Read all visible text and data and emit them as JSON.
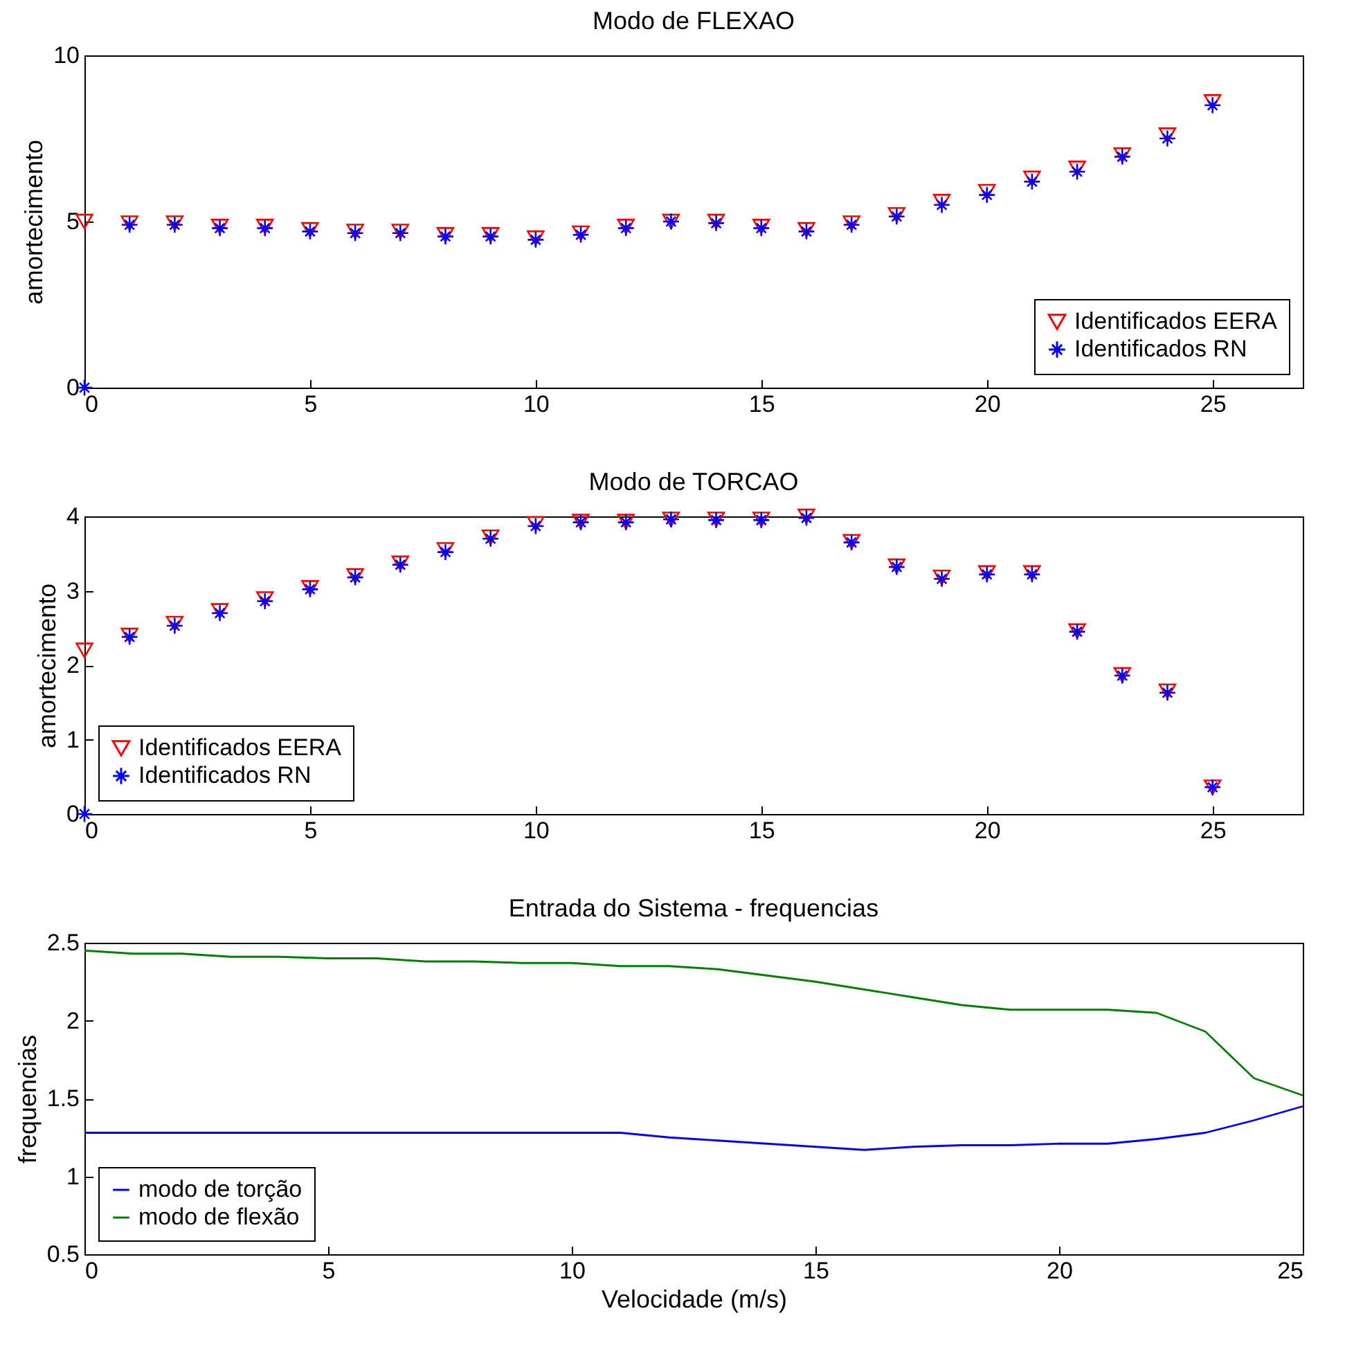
{
  "chart_data": [
    {
      "type": "scatter",
      "title": "Modo de FLEXAO",
      "ylabel": "amortecimento",
      "x": [
        0,
        1,
        2,
        3,
        4,
        5,
        6,
        7,
        8,
        9,
        10,
        11,
        12,
        13,
        14,
        15,
        16,
        17,
        18,
        19,
        20,
        21,
        22,
        23,
        24,
        25
      ],
      "xlim": [
        0,
        27
      ],
      "xticks": [
        0,
        5,
        10,
        15,
        20,
        25
      ],
      "ylim": [
        0,
        10
      ],
      "yticks": [
        0,
        5,
        10
      ],
      "grid": false,
      "legend": "bottom right",
      "series": [
        {
          "name": "Identificados EERA",
          "color": "#ff0000",
          "marker": "triangle",
          "values": [
            5.0,
            4.95,
            4.95,
            4.85,
            4.85,
            4.75,
            4.7,
            4.7,
            4.6,
            4.6,
            4.5,
            4.65,
            4.85,
            5.0,
            5.0,
            4.85,
            4.75,
            4.95,
            5.2,
            5.6,
            5.9,
            6.3,
            6.6,
            7.0,
            7.6,
            8.6
          ]
        },
        {
          "name": "Identificados RN",
          "color": "#0000ff",
          "marker": "cross",
          "values": [
            0,
            4.9,
            4.9,
            4.8,
            4.8,
            4.7,
            4.65,
            4.65,
            4.55,
            4.55,
            4.45,
            4.6,
            4.8,
            5.0,
            4.95,
            4.8,
            4.7,
            4.9,
            5.15,
            5.5,
            5.8,
            6.2,
            6.5,
            6.95,
            7.5,
            8.5
          ]
        }
      ]
    },
    {
      "type": "scatter",
      "title": "Modo de TORCAO",
      "ylabel": "amortecimento",
      "x": [
        0,
        1,
        2,
        3,
        4,
        5,
        6,
        7,
        8,
        9,
        10,
        11,
        12,
        13,
        14,
        15,
        16,
        17,
        18,
        19,
        20,
        21,
        22,
        23,
        24,
        25
      ],
      "xlim": [
        0,
        27
      ],
      "xticks": [
        0,
        5,
        10,
        15,
        20,
        25
      ],
      "ylim": [
        0,
        4
      ],
      "yticks": [
        0,
        1,
        2,
        3,
        4
      ],
      "grid": false,
      "legend": "bottom left",
      "series": [
        {
          "name": "Identificados EERA",
          "color": "#ff0000",
          "marker": "triangle",
          "values": [
            2.2,
            2.4,
            2.56,
            2.73,
            2.89,
            3.04,
            3.2,
            3.37,
            3.55,
            3.72,
            3.9,
            3.93,
            3.93,
            3.96,
            3.96,
            3.96,
            4.0,
            3.66,
            3.33,
            3.18,
            3.24,
            3.24,
            2.46,
            1.87,
            1.65,
            0.36
          ]
        },
        {
          "name": "Identificados RN",
          "color": "#0000ff",
          "marker": "cross",
          "values": [
            0,
            2.38,
            2.53,
            2.7,
            2.86,
            3.02,
            3.18,
            3.35,
            3.52,
            3.7,
            3.87,
            3.92,
            3.92,
            3.96,
            3.95,
            3.95,
            3.98,
            3.65,
            3.32,
            3.16,
            3.22,
            3.22,
            2.45,
            1.86,
            1.63,
            0.36
          ]
        }
      ]
    },
    {
      "type": "line",
      "title": "Entrada do Sistema - frequencias",
      "xlabel": "Velocidade (m/s)",
      "ylabel": "frequencias",
      "x": [
        0,
        1,
        2,
        3,
        4,
        5,
        6,
        7,
        8,
        9,
        10,
        11,
        12,
        13,
        14,
        15,
        16,
        17,
        18,
        19,
        20,
        21,
        22,
        23,
        24,
        25
      ],
      "xlim": [
        0,
        25
      ],
      "xticks": [
        0,
        5,
        10,
        15,
        20,
        25
      ],
      "ylim": [
        0.5,
        2.5
      ],
      "yticks": [
        0.5,
        1,
        1.5,
        2,
        2.5
      ],
      "grid": false,
      "legend": "bottom left",
      "line_style": "solid",
      "series": [
        {
          "name": "modo de torção",
          "color": "#0000ff",
          "values": [
            1.28,
            1.28,
            1.28,
            1.28,
            1.28,
            1.28,
            1.28,
            1.28,
            1.28,
            1.28,
            1.28,
            1.28,
            1.25,
            1.23,
            1.21,
            1.19,
            1.17,
            1.19,
            1.2,
            1.2,
            1.21,
            1.21,
            1.24,
            1.28,
            1.36,
            1.45
          ]
        },
        {
          "name": "modo de flexão",
          "color": "#008000",
          "values": [
            2.45,
            2.43,
            2.43,
            2.41,
            2.41,
            2.4,
            2.4,
            2.38,
            2.38,
            2.37,
            2.37,
            2.35,
            2.35,
            2.33,
            2.29,
            2.25,
            2.2,
            2.15,
            2.1,
            2.07,
            2.07,
            2.07,
            2.05,
            1.93,
            1.63,
            1.52
          ]
        }
      ]
    }
  ]
}
